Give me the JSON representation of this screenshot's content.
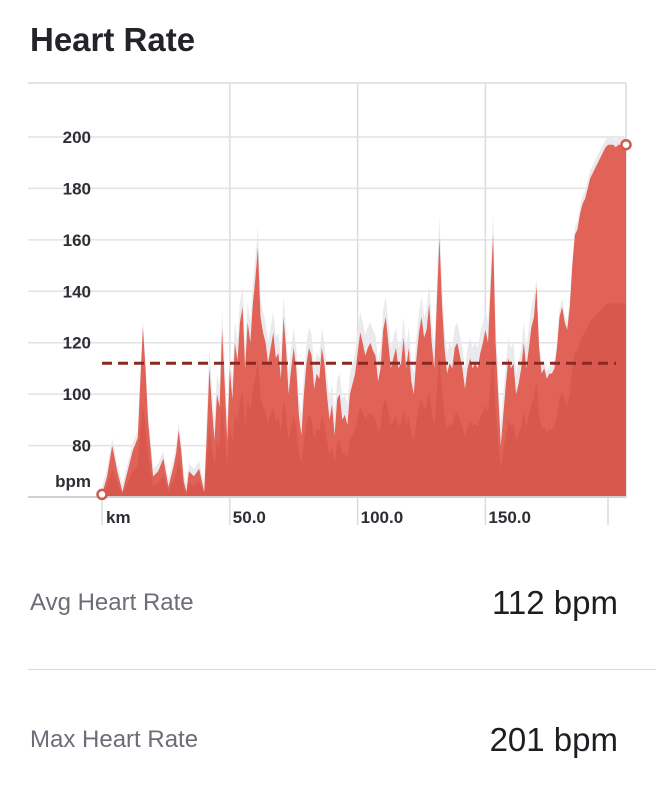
{
  "header": {
    "title": "Heart Rate"
  },
  "chart_data": {
    "type": "area",
    "colors": {
      "fill": "#e05d52",
      "shade": "#e8e8ec",
      "avg_line": "#8b2a22",
      "marker": "#cf5a4e"
    },
    "x_unit": "km",
    "y_unit": "bpm",
    "x_ticks": [
      "50.0",
      "100.0",
      "150.0"
    ],
    "x_tick_values": [
      50,
      100,
      150
    ],
    "y_ticks": [
      200,
      180,
      160,
      140,
      120,
      100,
      80
    ],
    "xlim": [
      0,
      205
    ],
    "ylim": [
      60,
      221
    ],
    "grid": true,
    "average": 112,
    "markers": [
      {
        "x": 0,
        "y": 61
      },
      {
        "x": 205,
        "y": 197
      }
    ],
    "series": [
      {
        "values": [
          [
            0,
            61
          ],
          [
            2,
            68
          ],
          [
            4,
            80
          ],
          [
            6,
            70
          ],
          [
            8,
            62
          ],
          [
            10,
            70
          ],
          [
            12,
            78
          ],
          [
            14,
            83
          ],
          [
            15,
            105
          ],
          [
            16,
            126
          ],
          [
            17,
            110
          ],
          [
            18,
            90
          ],
          [
            20,
            68
          ],
          [
            22,
            70
          ],
          [
            24,
            75
          ],
          [
            26,
            64
          ],
          [
            28,
            72
          ],
          [
            29,
            77
          ],
          [
            30,
            86
          ],
          [
            31,
            78
          ],
          [
            32,
            66
          ],
          [
            33,
            62
          ],
          [
            34,
            70
          ],
          [
            36,
            68
          ],
          [
            38,
            71
          ],
          [
            40,
            62
          ],
          [
            41,
            84
          ],
          [
            42,
            110
          ],
          [
            43,
            95
          ],
          [
            44,
            82
          ],
          [
            45,
            100
          ],
          [
            46,
            95
          ],
          [
            47,
            125
          ],
          [
            48,
            104
          ],
          [
            49,
            82
          ],
          [
            50,
            110
          ],
          [
            51,
            98
          ],
          [
            52,
            120
          ],
          [
            53,
            113
          ],
          [
            54,
            128
          ],
          [
            55,
            134
          ],
          [
            56,
            110
          ],
          [
            57,
            128
          ],
          [
            58,
            120
          ],
          [
            59,
            135
          ],
          [
            60,
            145
          ],
          [
            61,
            157
          ],
          [
            62,
            130
          ],
          [
            63,
            124
          ],
          [
            64,
            120
          ],
          [
            65,
            112
          ],
          [
            66,
            118
          ],
          [
            67,
            124
          ],
          [
            68,
            114
          ],
          [
            69,
            116
          ],
          [
            70,
            106
          ],
          [
            71,
            130
          ],
          [
            72,
            118
          ],
          [
            73,
            100
          ],
          [
            74,
            110
          ],
          [
            75,
            118
          ],
          [
            76,
            110
          ],
          [
            77,
            92
          ],
          [
            78,
            84
          ],
          [
            79,
            100
          ],
          [
            80,
            112
          ],
          [
            81,
            118
          ],
          [
            82,
            115
          ],
          [
            83,
            102
          ],
          [
            84,
            108
          ],
          [
            85,
            106
          ],
          [
            86,
            118
          ],
          [
            87,
            112
          ],
          [
            88,
            100
          ],
          [
            89,
            90
          ],
          [
            90,
            96
          ],
          [
            91,
            84
          ],
          [
            92,
            98
          ],
          [
            93,
            100
          ],
          [
            94,
            90
          ],
          [
            95,
            92
          ],
          [
            96,
            88
          ],
          [
            97,
            100
          ],
          [
            98,
            104
          ],
          [
            99,
            108
          ],
          [
            100,
            116
          ],
          [
            101,
            124
          ],
          [
            102,
            120
          ],
          [
            103,
            115
          ],
          [
            104,
            118
          ],
          [
            105,
            120
          ],
          [
            106,
            117
          ],
          [
            107,
            115
          ],
          [
            108,
            105
          ],
          [
            109,
            110
          ],
          [
            110,
            125
          ],
          [
            111,
            130
          ],
          [
            112,
            120
          ],
          [
            113,
            110
          ],
          [
            114,
            114
          ],
          [
            115,
            118
          ],
          [
            116,
            110
          ],
          [
            117,
            112
          ],
          [
            118,
            122
          ],
          [
            119,
            110
          ],
          [
            120,
            118
          ],
          [
            121,
            105
          ],
          [
            122,
            100
          ],
          [
            123,
            114
          ],
          [
            124,
            124
          ],
          [
            125,
            130
          ],
          [
            126,
            122
          ],
          [
            127,
            125
          ],
          [
            128,
            135
          ],
          [
            129,
            120
          ],
          [
            130,
            110
          ],
          [
            131,
            135
          ],
          [
            132,
            161
          ],
          [
            133,
            135
          ],
          [
            134,
            118
          ],
          [
            135,
            108
          ],
          [
            136,
            112
          ],
          [
            137,
            110
          ],
          [
            138,
            118
          ],
          [
            139,
            120
          ],
          [
            140,
            115
          ],
          [
            141,
            110
          ],
          [
            142,
            102
          ],
          [
            143,
            110
          ],
          [
            144,
            114
          ],
          [
            145,
            110
          ],
          [
            146,
            112
          ],
          [
            147,
            110
          ],
          [
            148,
            116
          ],
          [
            149,
            120
          ],
          [
            150,
            125
          ],
          [
            151,
            120
          ],
          [
            152,
            140
          ],
          [
            153,
            162
          ],
          [
            154,
            120
          ],
          [
            155,
            100
          ],
          [
            156,
            80
          ],
          [
            157,
            92
          ],
          [
            158,
            104
          ],
          [
            159,
            114
          ],
          [
            160,
            110
          ],
          [
            161,
            112
          ],
          [
            162,
            100
          ],
          [
            163,
            104
          ],
          [
            164,
            110
          ],
          [
            165,
            120
          ],
          [
            166,
            110
          ],
          [
            167,
            118
          ],
          [
            168,
            126
          ],
          [
            169,
            130
          ],
          [
            170,
            142
          ],
          [
            171,
            118
          ],
          [
            172,
            108
          ],
          [
            173,
            110
          ],
          [
            174,
            106
          ],
          [
            175,
            108
          ],
          [
            176,
            108
          ],
          [
            177,
            110
          ],
          [
            178,
            118
          ],
          [
            179,
            130
          ],
          [
            180,
            134
          ],
          [
            181,
            128
          ],
          [
            182,
            125
          ],
          [
            183,
            134
          ],
          [
            184,
            150
          ],
          [
            185,
            162
          ],
          [
            186,
            164
          ],
          [
            187,
            170
          ],
          [
            188,
            174
          ],
          [
            189,
            176
          ],
          [
            190,
            180
          ],
          [
            191,
            184
          ],
          [
            192,
            186
          ],
          [
            193,
            188
          ],
          [
            194,
            190
          ],
          [
            195,
            192
          ],
          [
            196,
            194
          ],
          [
            197,
            196
          ],
          [
            198,
            197
          ],
          [
            199,
            197
          ],
          [
            200,
            197
          ],
          [
            201,
            196
          ],
          [
            202,
            197
          ],
          [
            203,
            197
          ],
          [
            204,
            197
          ],
          [
            205,
            197
          ]
        ]
      }
    ]
  },
  "stats": [
    {
      "label": "Avg Heart Rate",
      "value": "112 bpm"
    },
    {
      "label": "Max Heart Rate",
      "value": "201 bpm"
    }
  ]
}
